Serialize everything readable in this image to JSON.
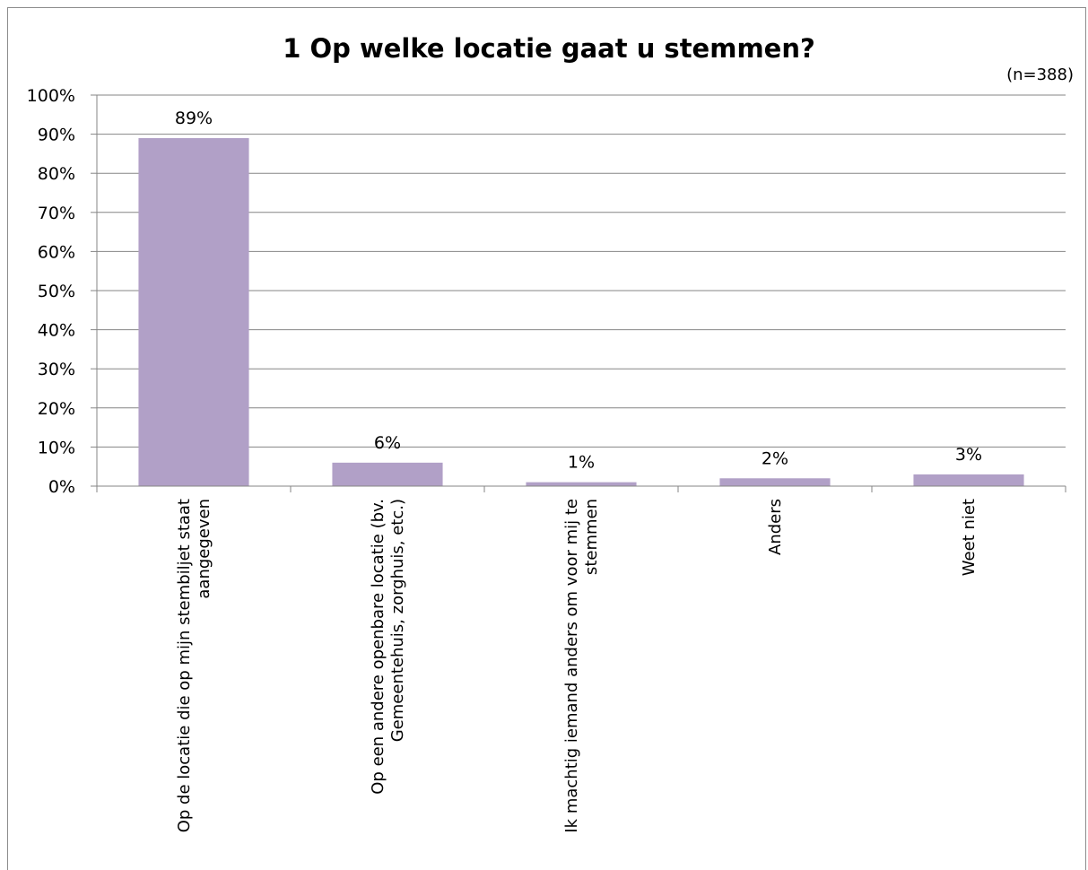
{
  "chart_data": {
    "type": "bar",
    "title": "1 Op welke locatie gaat u stemmen?",
    "subtitle": "(n=388)",
    "categories": [
      [
        "Op de locatie die op mijn stembiljet staat",
        "aangegeven"
      ],
      [
        "Op een andere openbare locatie (bv.",
        "Gemeentehuis, zorghuis, etc.)"
      ],
      [
        "Ik machtig iemand anders om voor mij te",
        "stemmen"
      ],
      [
        "Anders"
      ],
      [
        "Weet niet"
      ]
    ],
    "values": [
      0.89,
      0.06,
      0.01,
      0.02,
      0.03
    ],
    "data_labels": [
      "89%",
      "6%",
      "1%",
      "2%",
      "3%"
    ],
    "ylim": [
      0,
      1
    ],
    "yticks": [
      "0%",
      "10%",
      "20%",
      "30%",
      "40%",
      "50%",
      "60%",
      "70%",
      "80%",
      "90%",
      "100%"
    ],
    "grid": true,
    "bar_color": "#b1a0c7",
    "grid_color": "#868686"
  }
}
